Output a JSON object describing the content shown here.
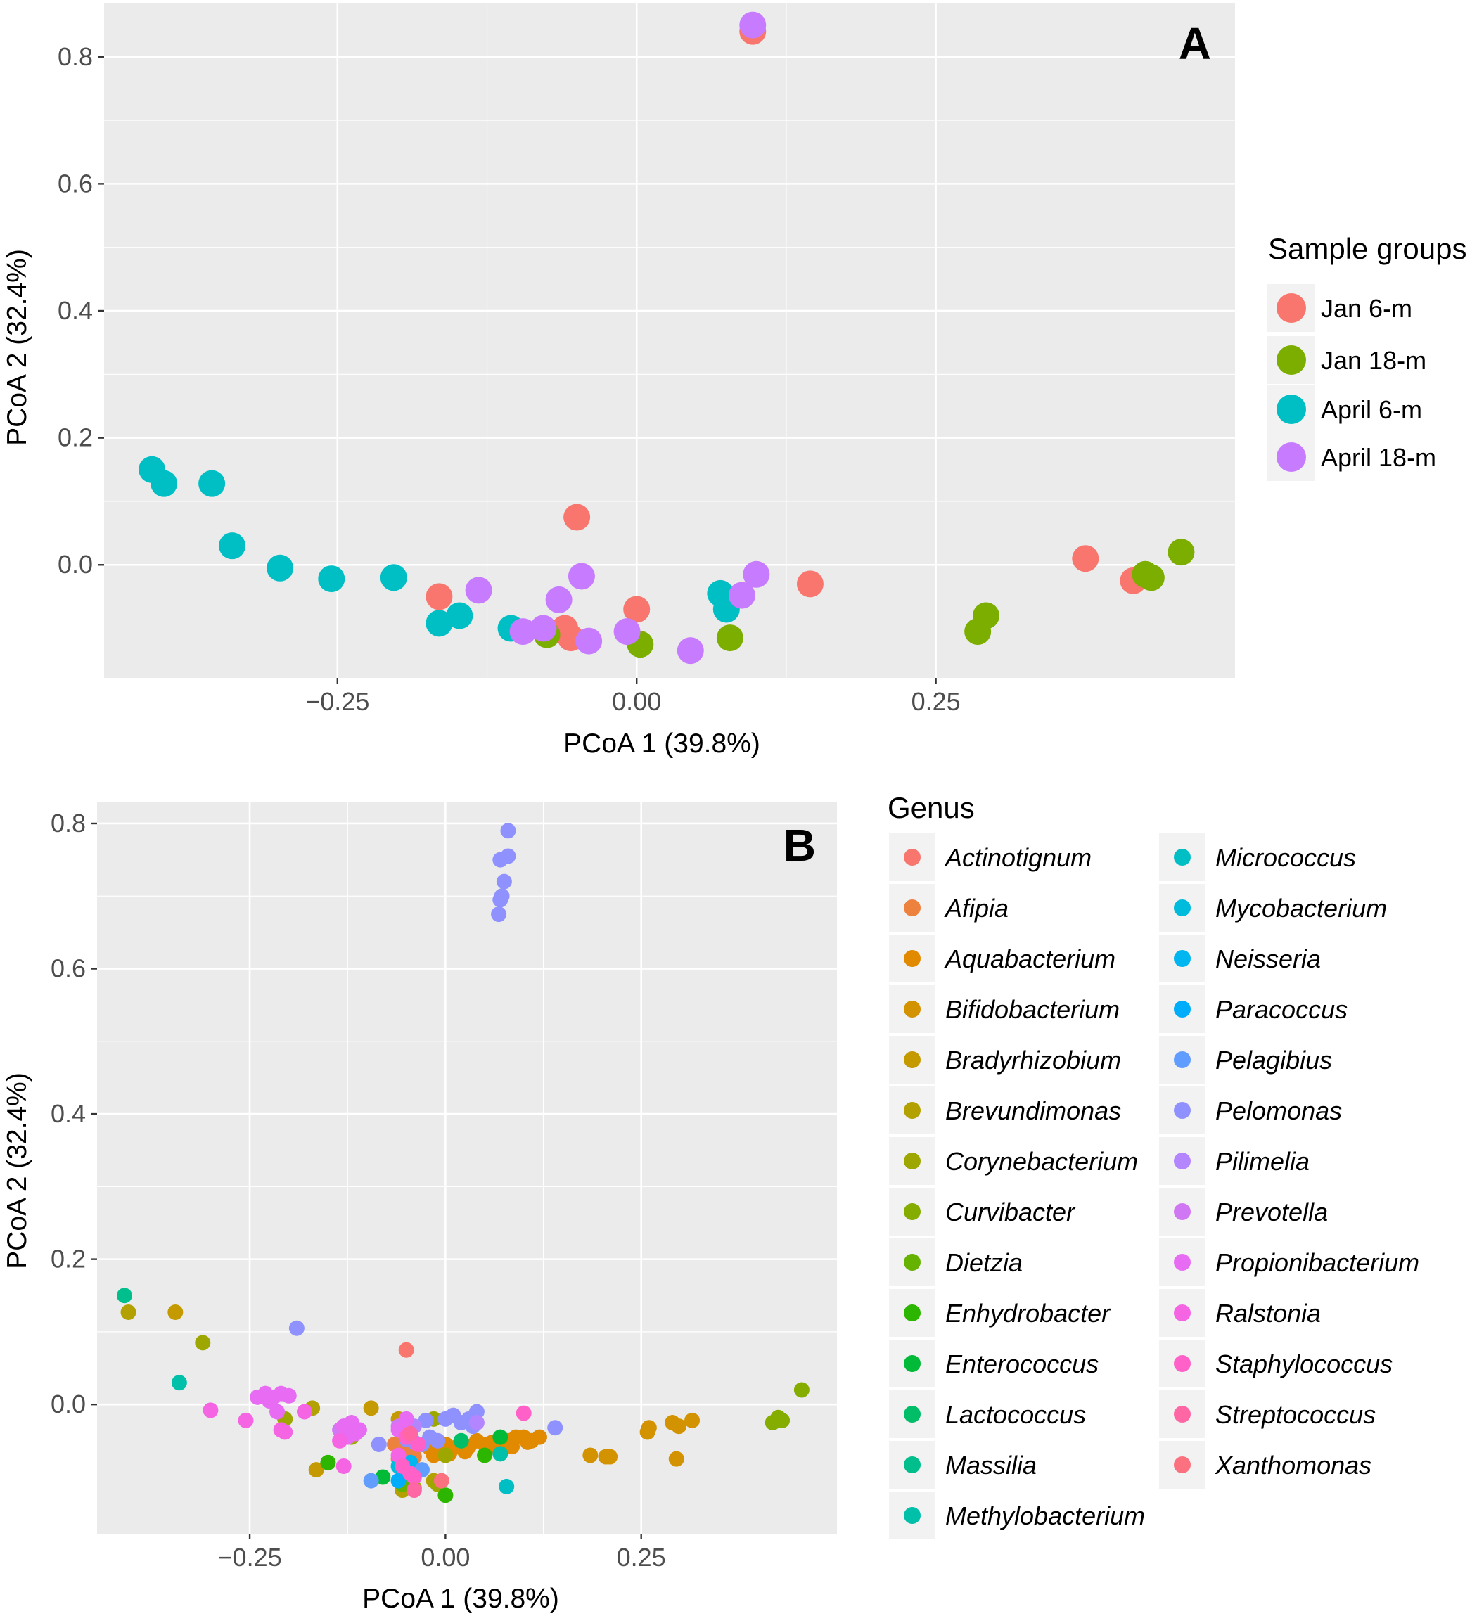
{
  "colors": {
    "panel_bg": "#EBEBEB",
    "grid": "#FFFFFF",
    "tick": "#333333",
    "legend_key_bg": "#F2F2F2"
  },
  "legend_a": {
    "title": "Sample groups",
    "items": [
      {
        "label": "Jan 6-m",
        "color": "#F8766D"
      },
      {
        "label": "Jan 18-m",
        "color": "#7CAE00"
      },
      {
        "label": "April 6-m",
        "color": "#00BFC4"
      },
      {
        "label": "April 18-m",
        "color": "#C77CFF"
      }
    ]
  },
  "legend_b": {
    "title": "Genus",
    "items": [
      {
        "label": "Actinotignum",
        "color": "#F8766D"
      },
      {
        "label": "Afipia",
        "color": "#ED813E"
      },
      {
        "label": "Aquabacterium",
        "color": "#E18A00"
      },
      {
        "label": "Bifidobacterium",
        "color": "#D39200"
      },
      {
        "label": "Bradyrhizobium",
        "color": "#C49A00"
      },
      {
        "label": "Brevundimonas",
        "color": "#B2A100"
      },
      {
        "label": "Corynebacterium",
        "color": "#9DA700"
      },
      {
        "label": "Curvibacter",
        "color": "#85AD00"
      },
      {
        "label": "Dietzia",
        "color": "#66B200"
      },
      {
        "label": "Enhydrobacter",
        "color": "#2DB600"
      },
      {
        "label": "Enterococcus",
        "color": "#00BA38"
      },
      {
        "label": "Lactococcus",
        "color": "#00BD68"
      },
      {
        "label": "Massilia",
        "color": "#00BF8C"
      },
      {
        "label": "Methylobacterium",
        "color": "#00C0AA"
      },
      {
        "label": "Micrococcus",
        "color": "#00BFC4"
      },
      {
        "label": "Mycobacterium",
        "color": "#00BCDC"
      },
      {
        "label": "Neisseria",
        "color": "#00B6F0"
      },
      {
        "label": "Paracoccus",
        "color": "#00ADFA"
      },
      {
        "label": "Pelagibius",
        "color": "#619CFF"
      },
      {
        "label": "Pelomonas",
        "color": "#8F91FF"
      },
      {
        "label": "Pilimelia",
        "color": "#B385FF"
      },
      {
        "label": "Prevotella",
        "color": "#D078F3"
      },
      {
        "label": "Propionibacterium",
        "color": "#E76BF3"
      },
      {
        "label": "Ralstonia",
        "color": "#F564E3"
      },
      {
        "label": "Staphylococcus",
        "color": "#FF61C8"
      },
      {
        "label": "Streptococcus",
        "color": "#FF67A4"
      },
      {
        "label": "Xanthomonas",
        "color": "#FC717F"
      }
    ]
  },
  "chart_data": [
    {
      "type": "scatter",
      "panel_label": "A",
      "title": "",
      "xlabel": "PCoA 1 (39.8%)",
      "ylabel": "PCoA 2 (32.4%)",
      "xlim": [
        -0.445,
        0.5
      ],
      "ylim": [
        -0.178,
        0.885
      ],
      "xticks": [
        -0.25,
        0.0,
        0.25
      ],
      "xtick_labels": [
        "−0.25",
        "0.00",
        "0.25"
      ],
      "yticks": [
        0.0,
        0.2,
        0.4,
        0.6,
        0.8
      ],
      "ytick_labels": [
        "0.0",
        "0.2",
        "0.4",
        "0.6",
        "0.8"
      ],
      "grid": true,
      "legend_position": "right",
      "point_size": "large",
      "series": [
        {
          "name": "Jan 6-m",
          "color": "#F8766D",
          "x": [
            -0.165,
            -0.05,
            -0.06,
            -0.055,
            0.0,
            0.145,
            0.375,
            0.415,
            0.097
          ],
          "y": [
            -0.05,
            0.075,
            -0.1,
            -0.115,
            -0.07,
            -0.03,
            0.01,
            -0.025,
            0.84
          ]
        },
        {
          "name": "Jan 18-m",
          "color": "#7CAE00",
          "x": [
            -0.075,
            0.003,
            0.078,
            0.285,
            0.292,
            0.425,
            0.43,
            0.455
          ],
          "y": [
            -0.11,
            -0.125,
            -0.115,
            -0.105,
            -0.08,
            -0.015,
            -0.02,
            0.02
          ]
        },
        {
          "name": "April 6-m",
          "color": "#00BFC4",
          "x": [
            -0.405,
            -0.395,
            -0.355,
            -0.338,
            -0.298,
            -0.255,
            -0.203,
            -0.165,
            -0.148,
            -0.105,
            0.07,
            0.075
          ],
          "y": [
            0.15,
            0.128,
            0.128,
            0.03,
            -0.005,
            -0.022,
            -0.02,
            -0.092,
            -0.08,
            -0.1,
            -0.045,
            -0.07
          ]
        },
        {
          "name": "April 18-m",
          "color": "#C77CFF",
          "x": [
            -0.132,
            -0.095,
            -0.078,
            -0.065,
            -0.046,
            -0.04,
            -0.008,
            0.045,
            0.088,
            0.1,
            0.097
          ],
          "y": [
            -0.04,
            -0.105,
            -0.1,
            -0.055,
            -0.018,
            -0.12,
            -0.105,
            -0.135,
            -0.048,
            -0.015,
            0.85
          ]
        }
      ]
    },
    {
      "type": "scatter",
      "panel_label": "B",
      "title": "",
      "xlabel": "PCoA 1 (39.8%)",
      "ylabel": "PCoA 2 (32.4%)",
      "xlim": [
        -0.445,
        0.5
      ],
      "ylim": [
        -0.178,
        0.83
      ],
      "xticks": [
        -0.25,
        0.0,
        0.25
      ],
      "xtick_labels": [
        "−0.25",
        "0.00",
        "0.25"
      ],
      "yticks": [
        0.0,
        0.2,
        0.4,
        0.6,
        0.8
      ],
      "ytick_labels": [
        "0.0",
        "0.2",
        "0.4",
        "0.6",
        "0.8"
      ],
      "grid": true,
      "legend_position": "right",
      "point_size": "small",
      "series": [
        {
          "name": "Actinotignum",
          "color": "#F8766D",
          "x": [
            -0.05
          ],
          "y": [
            0.075
          ]
        },
        {
          "name": "Afipia",
          "color": "#ED813E",
          "x": [
            -0.065,
            -0.06,
            -0.05,
            -0.04
          ],
          "y": [
            -0.055,
            -0.075,
            -0.06,
            -0.072
          ]
        },
        {
          "name": "Aquabacterium",
          "color": "#E18A00",
          "x": [
            -0.03,
            -0.02,
            -0.01,
            0.0,
            0.01,
            0.02,
            0.03,
            0.04,
            0.05,
            0.06,
            0.07,
            0.08,
            0.09,
            0.1,
            0.11,
            0.12,
            -0.015,
            0.005,
            0.025,
            0.055,
            0.085,
            0.105
          ],
          "y": [
            -0.055,
            -0.06,
            -0.065,
            -0.055,
            -0.06,
            -0.055,
            -0.058,
            -0.05,
            -0.055,
            -0.052,
            -0.048,
            -0.05,
            -0.045,
            -0.045,
            -0.05,
            -0.045,
            -0.07,
            -0.068,
            -0.065,
            -0.06,
            -0.058,
            -0.052
          ]
        },
        {
          "name": "Bifidobacterium",
          "color": "#D39200",
          "x": [
            0.185,
            0.205,
            0.21,
            0.258,
            0.26,
            0.29,
            0.298,
            0.295,
            0.315
          ],
          "y": [
            -0.07,
            -0.072,
            -0.072,
            -0.038,
            -0.032,
            -0.025,
            -0.03,
            -0.075,
            -0.022
          ]
        },
        {
          "name": "Bradyrhizobium",
          "color": "#C49A00",
          "x": [
            -0.345,
            -0.165,
            -0.095,
            -0.06
          ],
          "y": [
            0.127,
            -0.09,
            -0.005,
            -0.02
          ]
        },
        {
          "name": "Brevundimonas",
          "color": "#B2A100",
          "x": [
            -0.405,
            -0.17,
            -0.055,
            -0.015
          ],
          "y": [
            0.127,
            -0.005,
            -0.118,
            -0.105
          ]
        },
        {
          "name": "Corynebacterium",
          "color": "#9DA700",
          "x": [
            -0.31,
            -0.205,
            -0.12,
            -0.04,
            -0.015,
            0.0,
            -0.01
          ],
          "y": [
            0.085,
            -0.02,
            -0.045,
            -0.115,
            -0.02,
            -0.07,
            -0.11
          ]
        },
        {
          "name": "Curvibacter",
          "color": "#85AD00",
          "x": [
            0.418,
            0.425,
            0.43,
            0.455
          ],
          "y": [
            -0.025,
            -0.018,
            -0.022,
            0.02
          ]
        },
        {
          "name": "Dietzia",
          "color": "#66B200",
          "x": [
            -0.055
          ],
          "y": [
            -0.11
          ]
        },
        {
          "name": "Enhydrobacter",
          "color": "#2DB600",
          "x": [
            -0.15,
            0.05,
            0.0
          ],
          "y": [
            -0.08,
            -0.07,
            -0.125
          ]
        },
        {
          "name": "Enterococcus",
          "color": "#00BA38",
          "x": [
            -0.08,
            0.07
          ],
          "y": [
            -0.1,
            -0.045
          ]
        },
        {
          "name": "Lactococcus",
          "color": "#00BD68",
          "x": [
            0.02
          ],
          "y": [
            -0.05
          ]
        },
        {
          "name": "Massilia",
          "color": "#00BF8C",
          "x": [
            -0.41
          ],
          "y": [
            0.15
          ]
        },
        {
          "name": "Methylobacterium",
          "color": "#00C0AA",
          "x": [
            -0.34,
            0.07
          ],
          "y": [
            0.03,
            -0.068
          ]
        },
        {
          "name": "Micrococcus",
          "color": "#00BFC4",
          "x": [
            0.078
          ],
          "y": [
            -0.113
          ]
        },
        {
          "name": "Mycobacterium",
          "color": "#00BCDC",
          "x": [
            -0.06
          ],
          "y": [
            -0.085
          ]
        },
        {
          "name": "Neisseria",
          "color": "#00B6F0",
          "x": [
            -0.045
          ],
          "y": [
            -0.08
          ]
        },
        {
          "name": "Paracoccus",
          "color": "#00ADFA",
          "x": [
            -0.06
          ],
          "y": [
            -0.105
          ]
        },
        {
          "name": "Pelagibius",
          "color": "#619CFF",
          "x": [
            -0.095,
            -0.03
          ],
          "y": [
            -0.105,
            -0.09
          ]
        },
        {
          "name": "Pelomonas",
          "color": "#8F91FF",
          "x": [
            0.08,
            0.07,
            0.08,
            0.075,
            0.072,
            0.07,
            0.068,
            -0.19,
            -0.085,
            -0.05,
            -0.04,
            -0.03,
            -0.02,
            -0.01,
            0.0,
            0.01,
            0.02,
            0.03,
            0.04,
            0.14,
            -0.025,
            0.035
          ],
          "y": [
            0.79,
            0.75,
            0.755,
            0.72,
            0.7,
            0.695,
            0.675,
            0.105,
            -0.055,
            -0.048,
            -0.052,
            -0.055,
            -0.045,
            -0.05,
            -0.02,
            -0.015,
            -0.025,
            -0.02,
            -0.01,
            -0.032,
            -0.022,
            -0.03
          ]
        },
        {
          "name": "Pilimelia",
          "color": "#B385FF",
          "x": [
            -0.04,
            0.04
          ],
          "y": [
            -0.03,
            -0.025
          ]
        },
        {
          "name": "Prevotella",
          "color": "#D078F3",
          "x": [
            -0.135,
            -0.06
          ],
          "y": [
            -0.035,
            -0.03
          ]
        },
        {
          "name": "Propionibacterium",
          "color": "#E76BF3",
          "x": [
            -0.24,
            -0.23,
            -0.22,
            -0.21,
            -0.2,
            -0.215,
            -0.225,
            -0.13,
            -0.12,
            -0.11,
            -0.115,
            -0.125,
            -0.13,
            -0.06,
            -0.05
          ],
          "y": [
            0.01,
            0.015,
            0.01,
            0.015,
            0.012,
            -0.01,
            0.005,
            -0.03,
            -0.025,
            -0.035,
            -0.04,
            -0.045,
            -0.03,
            -0.035,
            -0.02
          ]
        },
        {
          "name": "Ralstonia",
          "color": "#F564E3",
          "x": [
            -0.3,
            -0.255,
            -0.21,
            -0.205,
            -0.18,
            -0.135,
            -0.13,
            -0.06
          ],
          "y": [
            -0.008,
            -0.022,
            -0.035,
            -0.038,
            -0.01,
            -0.05,
            -0.085,
            -0.07
          ]
        },
        {
          "name": "Staphylococcus",
          "color": "#FF61C8",
          "x": [
            -0.05,
            -0.045,
            -0.04,
            -0.035,
            0.1,
            -0.055
          ],
          "y": [
            -0.045,
            -0.095,
            -0.1,
            -0.055,
            -0.012,
            -0.085
          ]
        },
        {
          "name": "Streptococcus",
          "color": "#FF67A4",
          "x": [
            -0.04,
            -0.045
          ],
          "y": [
            -0.118,
            -0.04
          ]
        },
        {
          "name": "Xanthomonas",
          "color": "#FC717F",
          "x": [
            -0.005
          ],
          "y": [
            -0.105
          ]
        }
      ]
    }
  ]
}
